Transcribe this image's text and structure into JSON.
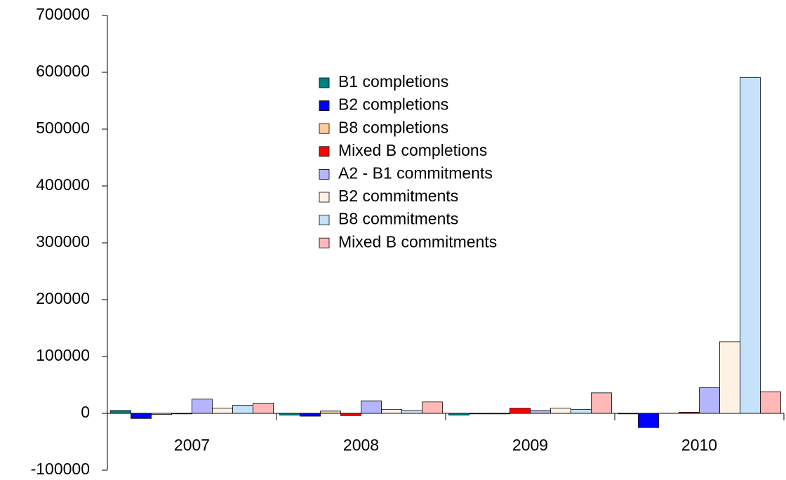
{
  "chart_data": {
    "type": "bar",
    "categories": [
      "2007",
      "2008",
      "2009",
      "2010"
    ],
    "series": [
      {
        "name": "B1 completions",
        "color": "#008080",
        "values": [
          5000,
          -3000,
          -3000,
          -1000
        ]
      },
      {
        "name": "B2 completions",
        "color": "#0000ff",
        "values": [
          -9000,
          -5000,
          -1000,
          -25000
        ]
      },
      {
        "name": "B8 completions",
        "color": "#ffcc99",
        "values": [
          -2000,
          4000,
          -1000,
          0
        ]
      },
      {
        "name": "Mixed B completions",
        "color": "#ff0000",
        "values": [
          -1000,
          -4000,
          9000,
          2000
        ]
      },
      {
        "name": "A2 - B1 commitments",
        "color": "#b4b4ff",
        "values": [
          25000,
          22000,
          5000,
          45000
        ]
      },
      {
        "name": "B2 commitments",
        "color": "#fff2e4",
        "values": [
          9000,
          7000,
          9000,
          126000
        ]
      },
      {
        "name": "B8 commitments",
        "color": "#c6e2fa",
        "values": [
          14000,
          5000,
          7000,
          591000
        ]
      },
      {
        "name": "Mixed B commitments",
        "color": "#ffb8b8",
        "values": [
          18000,
          20000,
          36000,
          38000
        ]
      }
    ],
    "ylim": [
      -100000,
      700000
    ],
    "yticks": [
      -100000,
      0,
      100000,
      200000,
      300000,
      400000,
      500000,
      600000,
      700000
    ],
    "grid": false,
    "legend_position": "upper center"
  }
}
